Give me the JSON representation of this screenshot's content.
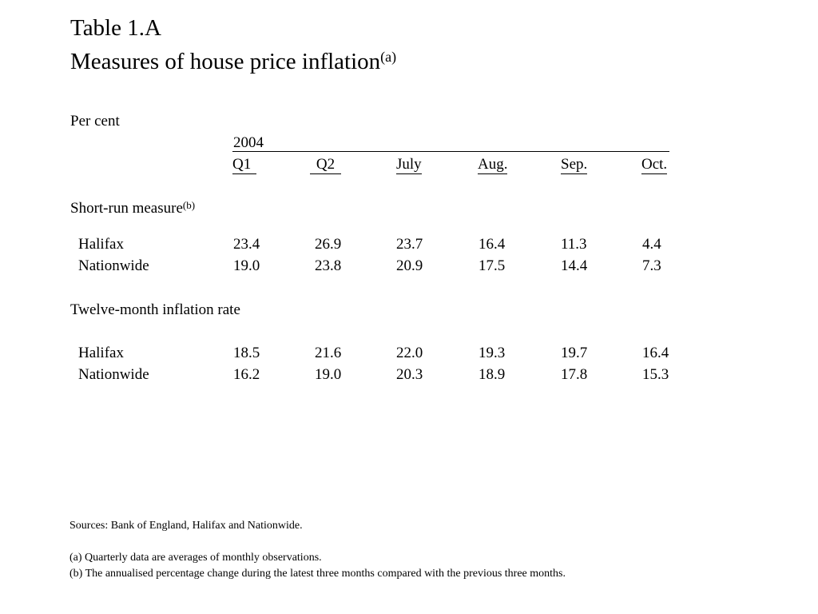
{
  "title": {
    "line1": "Table 1.A",
    "line2": "Measures of house price inflation",
    "line2_note": "(a)"
  },
  "units": "Per cent",
  "year": "2004",
  "columns": [
    "Q1",
    "Q2",
    "July",
    "Aug.",
    "Sep.",
    "Oct."
  ],
  "sections": [
    {
      "label": "Short-run measure",
      "note": "(b)",
      "rows": [
        {
          "name": "Halifax",
          "values": [
            "23.4",
            "26.9",
            "23.7",
            "16.4",
            "11.3",
            "4.4"
          ]
        },
        {
          "name": "Nationwide",
          "values": [
            "19.0",
            "23.8",
            "20.9",
            "17.5",
            "14.4",
            "7.3"
          ]
        }
      ]
    },
    {
      "label": "Twelve-month inflation rate",
      "note": "",
      "rows": [
        {
          "name": "Halifax",
          "values": [
            "18.5",
            "21.6",
            "22.0",
            "19.3",
            "19.7",
            "16.4"
          ]
        },
        {
          "name": "Nationwide",
          "values": [
            "16.2",
            "19.0",
            "20.3",
            "18.9",
            "17.8",
            "15.3"
          ]
        }
      ]
    }
  ],
  "footnotes": {
    "sources": "Sources:  Bank of England, Halifax and Nationwide.",
    "a": "(a)  Quarterly data are averages of monthly observations.",
    "b": "(b)  The annualised percentage change during the latest three months compared with the previous three months."
  }
}
